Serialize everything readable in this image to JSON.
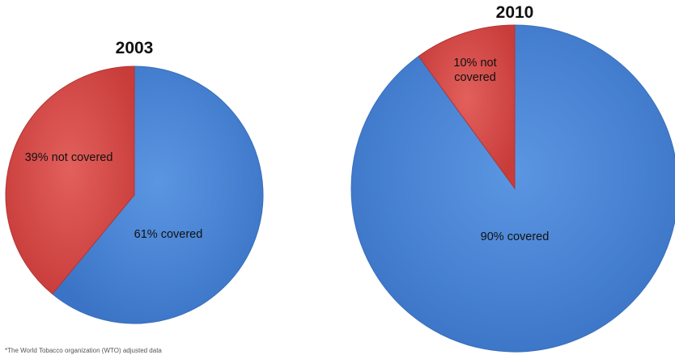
{
  "chart_data": [
    {
      "type": "pie",
      "title": "2003",
      "start": "top",
      "direction": "clockwise",
      "slices": [
        {
          "label": "61% covered",
          "value": 61,
          "color": "#4a86d6"
        },
        {
          "label": "39% not covered",
          "value": 39,
          "color": "#d94c49"
        }
      ]
    },
    {
      "type": "pie",
      "title": "2010",
      "start": "top",
      "direction": "clockwise",
      "slices": [
        {
          "label": "90% covered",
          "value": 90,
          "color": "#4a86d6"
        },
        {
          "label": "10% not covered",
          "value": 10,
          "color": "#d94c49"
        }
      ]
    }
  ],
  "footnote": "*The World Tobacco organization (WTO) adjusted data"
}
